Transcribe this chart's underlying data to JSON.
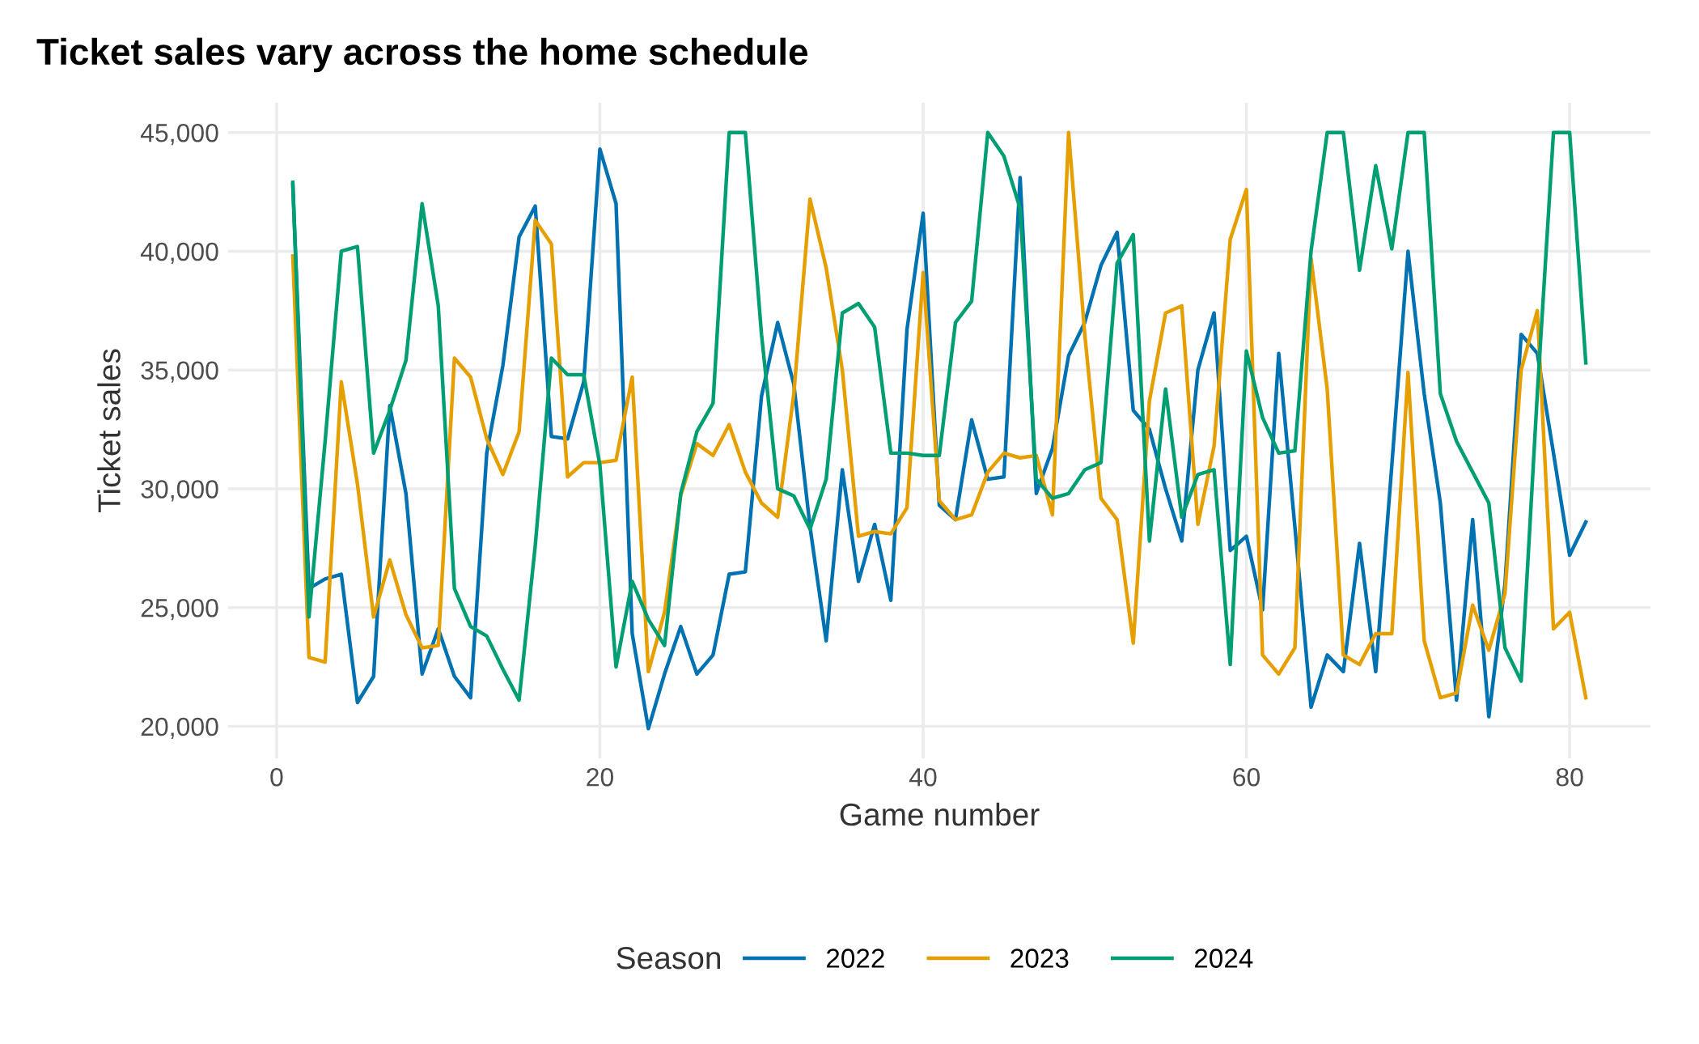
{
  "chart_data": {
    "type": "line",
    "title": "Ticket sales vary across the home schedule",
    "xlabel": "Game number",
    "ylabel": "Ticket sales",
    "legend_title": "Season",
    "x": [
      1,
      2,
      3,
      4,
      5,
      6,
      7,
      8,
      9,
      10,
      11,
      12,
      13,
      14,
      15,
      16,
      17,
      18,
      19,
      20,
      21,
      22,
      23,
      24,
      25,
      26,
      27,
      28,
      29,
      30,
      31,
      32,
      33,
      34,
      35,
      36,
      37,
      38,
      39,
      40,
      41,
      42,
      43,
      44,
      45,
      46,
      47,
      48,
      49,
      50,
      51,
      52,
      53,
      54,
      55,
      56,
      57,
      58,
      59,
      60,
      61,
      62,
      63,
      64,
      65,
      66,
      67,
      68,
      69,
      70,
      71,
      72,
      73,
      74,
      75,
      76,
      77,
      78,
      79,
      80,
      81
    ],
    "series": [
      {
        "name": "2022",
        "color": "#0072b2",
        "values": [
          42800,
          25800,
          26200,
          26400,
          21000,
          22100,
          33500,
          29800,
          22200,
          24100,
          22100,
          21200,
          31500,
          35200,
          40600,
          41900,
          32200,
          32100,
          34500,
          44300,
          42000,
          23900,
          19900,
          22200,
          24200,
          22200,
          23000,
          26400,
          26500,
          33900,
          37000,
          34400,
          28400,
          23600,
          30800,
          26100,
          28500,
          25300,
          36700,
          41600,
          29300,
          28700,
          32900,
          30400,
          30500,
          43100,
          29800,
          31700,
          35600,
          37000,
          39400,
          40800,
          33300,
          32500,
          30000,
          27800,
          35000,
          37400,
          27400,
          28000,
          24900,
          35700,
          28400,
          20800,
          23000,
          22300,
          27700,
          22300,
          31000,
          40000,
          34000,
          29400,
          21100,
          28700,
          20400,
          26000,
          36500,
          35700,
          31500,
          27200,
          28600
        ]
      },
      {
        "name": "2023",
        "color": "#e69f00",
        "values": [
          39800,
          22900,
          22700,
          34500,
          30200,
          24600,
          27000,
          24700,
          23300,
          23400,
          35500,
          34700,
          32100,
          30600,
          32400,
          41300,
          40300,
          30500,
          31100,
          31100,
          31200,
          34700,
          22300,
          24800,
          29700,
          31900,
          31400,
          32700,
          30700,
          29400,
          28800,
          34000,
          42200,
          39300,
          35000,
          28000,
          28200,
          28100,
          29200,
          39100,
          29500,
          28700,
          28900,
          30700,
          31500,
          31300,
          31400,
          28900,
          45000,
          36500,
          29600,
          28700,
          23500,
          33700,
          37400,
          37700,
          28500,
          31800,
          40500,
          42600,
          23000,
          22200,
          23300,
          39700,
          34200,
          23000,
          22600,
          23900,
          23900,
          34900,
          23600,
          21200,
          21400,
          25100,
          23200,
          25600,
          35000,
          37500,
          24100,
          24800,
          21200
        ]
      },
      {
        "name": "2024",
        "color": "#009e73",
        "values": [
          42900,
          24600,
          32000,
          40000,
          40200,
          31500,
          33300,
          35400,
          42000,
          37700,
          25800,
          24200,
          23800,
          22400,
          21100,
          27600,
          35500,
          34800,
          34800,
          31000,
          22500,
          26100,
          24500,
          23400,
          29800,
          32400,
          33600,
          45000,
          45000,
          36500,
          30000,
          29700,
          28300,
          30400,
          37400,
          37800,
          36800,
          31500,
          31500,
          31400,
          31400,
          37000,
          37900,
          45000,
          44000,
          41800,
          30400,
          29600,
          29800,
          30800,
          31100,
          39500,
          40700,
          27800,
          34200,
          28800,
          30600,
          30800,
          22600,
          35800,
          33000,
          31500,
          31600,
          40000,
          45000,
          45000,
          39200,
          43600,
          40100,
          45000,
          45000,
          34000,
          32000,
          30700,
          29400,
          23300,
          21900,
          34000,
          45000,
          45000,
          35300
        ]
      }
    ],
    "xlim": [
      -3,
      85
    ],
    "xticks": [
      0,
      20,
      40,
      60,
      80
    ],
    "ylim": [
      18650,
      46250
    ],
    "yticks": [
      {
        "value": 20000,
        "label": "20,000"
      },
      {
        "value": 25000,
        "label": "25,000"
      },
      {
        "value": 30000,
        "label": "30,000"
      },
      {
        "value": 35000,
        "label": "35,000"
      },
      {
        "value": 40000,
        "label": "40,000"
      },
      {
        "value": 45000,
        "label": "45,000"
      }
    ],
    "grid": true,
    "legend": "bottom",
    "marker": "none",
    "line_style": "solid"
  }
}
